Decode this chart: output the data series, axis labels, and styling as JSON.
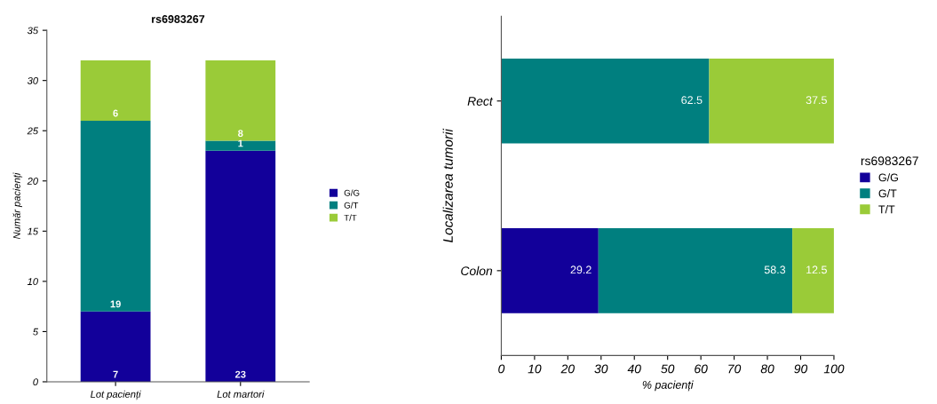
{
  "chart_data": [
    {
      "type": "bar",
      "stacked": true,
      "title": "rs6983267",
      "ylabel": "Număr pacienți",
      "categories": [
        "Lot pacienți",
        "Lot martori"
      ],
      "series": [
        {
          "name": "G/G",
          "color": "#12009a",
          "values": [
            7,
            23
          ]
        },
        {
          "name": "G/T",
          "color": "#007f7f",
          "values": [
            19,
            1
          ]
        },
        {
          "name": "T/T",
          "color": "#9acb38",
          "values": [
            6,
            8
          ]
        }
      ],
      "ylim": [
        0,
        35
      ],
      "yticks": [
        0,
        5,
        10,
        15,
        20,
        25,
        30,
        35
      ],
      "data_labels": true,
      "legend": "right",
      "grid": false
    },
    {
      "type": "bar",
      "stacked": true,
      "orientation": "horizontal",
      "xlabel": "% pacienți",
      "ylabel": "Localizarea tumorii",
      "legend_title": "rs6983267",
      "categories": [
        "Rect",
        "Colon"
      ],
      "series": [
        {
          "name": "G/G",
          "color": "#12009a",
          "values": [
            null,
            29.2
          ]
        },
        {
          "name": "G/T",
          "color": "#007f7f",
          "values": [
            62.5,
            58.3
          ]
        },
        {
          "name": "T/T",
          "color": "#9acb38",
          "values": [
            37.5,
            12.5
          ]
        }
      ],
      "xlim": [
        0,
        100
      ],
      "xticks": [
        0,
        10,
        20,
        30,
        40,
        50,
        60,
        70,
        80,
        90,
        100
      ],
      "data_labels": true,
      "legend": "right",
      "grid": false
    }
  ]
}
